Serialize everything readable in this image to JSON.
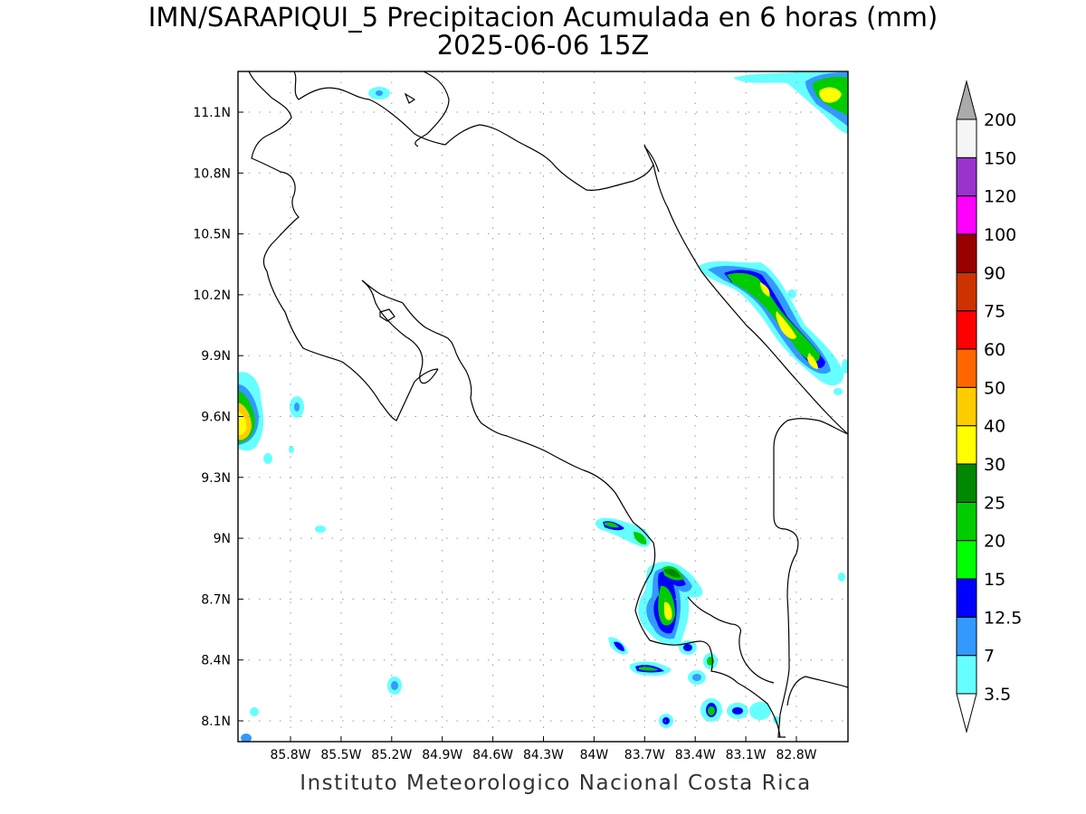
{
  "title": {
    "line1": "IMN/SARAPIQUI_5 Precipitacion Acumulada en 6 horas (mm)",
    "line2": "2025-06-06 15Z"
  },
  "footer": "Instituto Meteorologico Nacional Costa Rica",
  "map": {
    "lon_range": [
      -86.0,
      -83.0
    ],
    "lat_range": [
      8.0,
      11.3
    ],
    "x_ticks": [
      {
        "lon": -85.8,
        "label": "85.8W"
      },
      {
        "lon": -85.5,
        "label": "85.5W"
      },
      {
        "lon": -85.2,
        "label": "85.2W"
      },
      {
        "lon": -84.9,
        "label": "84.9W"
      },
      {
        "lon": -84.6,
        "label": "84.6W"
      },
      {
        "lon": -84.3,
        "label": "84.3W"
      },
      {
        "lon": -84.0,
        "label": "84W"
      },
      {
        "lon": -83.7,
        "label": "83.7W"
      },
      {
        "lon": -83.4,
        "label": "83.4W"
      },
      {
        "lon": -83.1,
        "label": "83.1W"
      },
      {
        "lon": -82.8,
        "label": "82.8W"
      }
    ],
    "y_ticks": [
      {
        "lat": 11.1,
        "label": "11.1N"
      },
      {
        "lat": 10.8,
        "label": "10.8N"
      },
      {
        "lat": 10.5,
        "label": "10.5N"
      },
      {
        "lat": 10.2,
        "label": "10.2N"
      },
      {
        "lat": 9.9,
        "label": "9.9N"
      },
      {
        "lat": 9.6,
        "label": "9.6N"
      },
      {
        "lat": 9.3,
        "label": "9.3N"
      },
      {
        "lat": 9.0,
        "label": "9N"
      },
      {
        "lat": 8.7,
        "label": "8.7N"
      },
      {
        "lat": 8.4,
        "label": "8.4N"
      },
      {
        "lat": 8.1,
        "label": "8.1N"
      }
    ],
    "grid": true
  },
  "colorbar": {
    "levels": [
      {
        "label": "3.5",
        "color": "#66ffff"
      },
      {
        "label": "7",
        "color": "#3399ff"
      },
      {
        "label": "12.5",
        "color": "#0000ff"
      },
      {
        "label": "15",
        "color": "#00ff00"
      },
      {
        "label": "20",
        "color": "#00cc00"
      },
      {
        "label": "25",
        "color": "#008800"
      },
      {
        "label": "30",
        "color": "#ffff00"
      },
      {
        "label": "40",
        "color": "#ffcc00"
      },
      {
        "label": "50",
        "color": "#ff6600"
      },
      {
        "label": "60",
        "color": "#ff0000"
      },
      {
        "label": "75",
        "color": "#cc3300"
      },
      {
        "label": "90",
        "color": "#990000"
      },
      {
        "label": "100",
        "color": "#ff00ff"
      },
      {
        "label": "120",
        "color": "#9933cc"
      },
      {
        "label": "150",
        "color": "#f5f5f5"
      },
      {
        "label": "200",
        "color": "#aaaaaa"
      }
    ]
  }
}
